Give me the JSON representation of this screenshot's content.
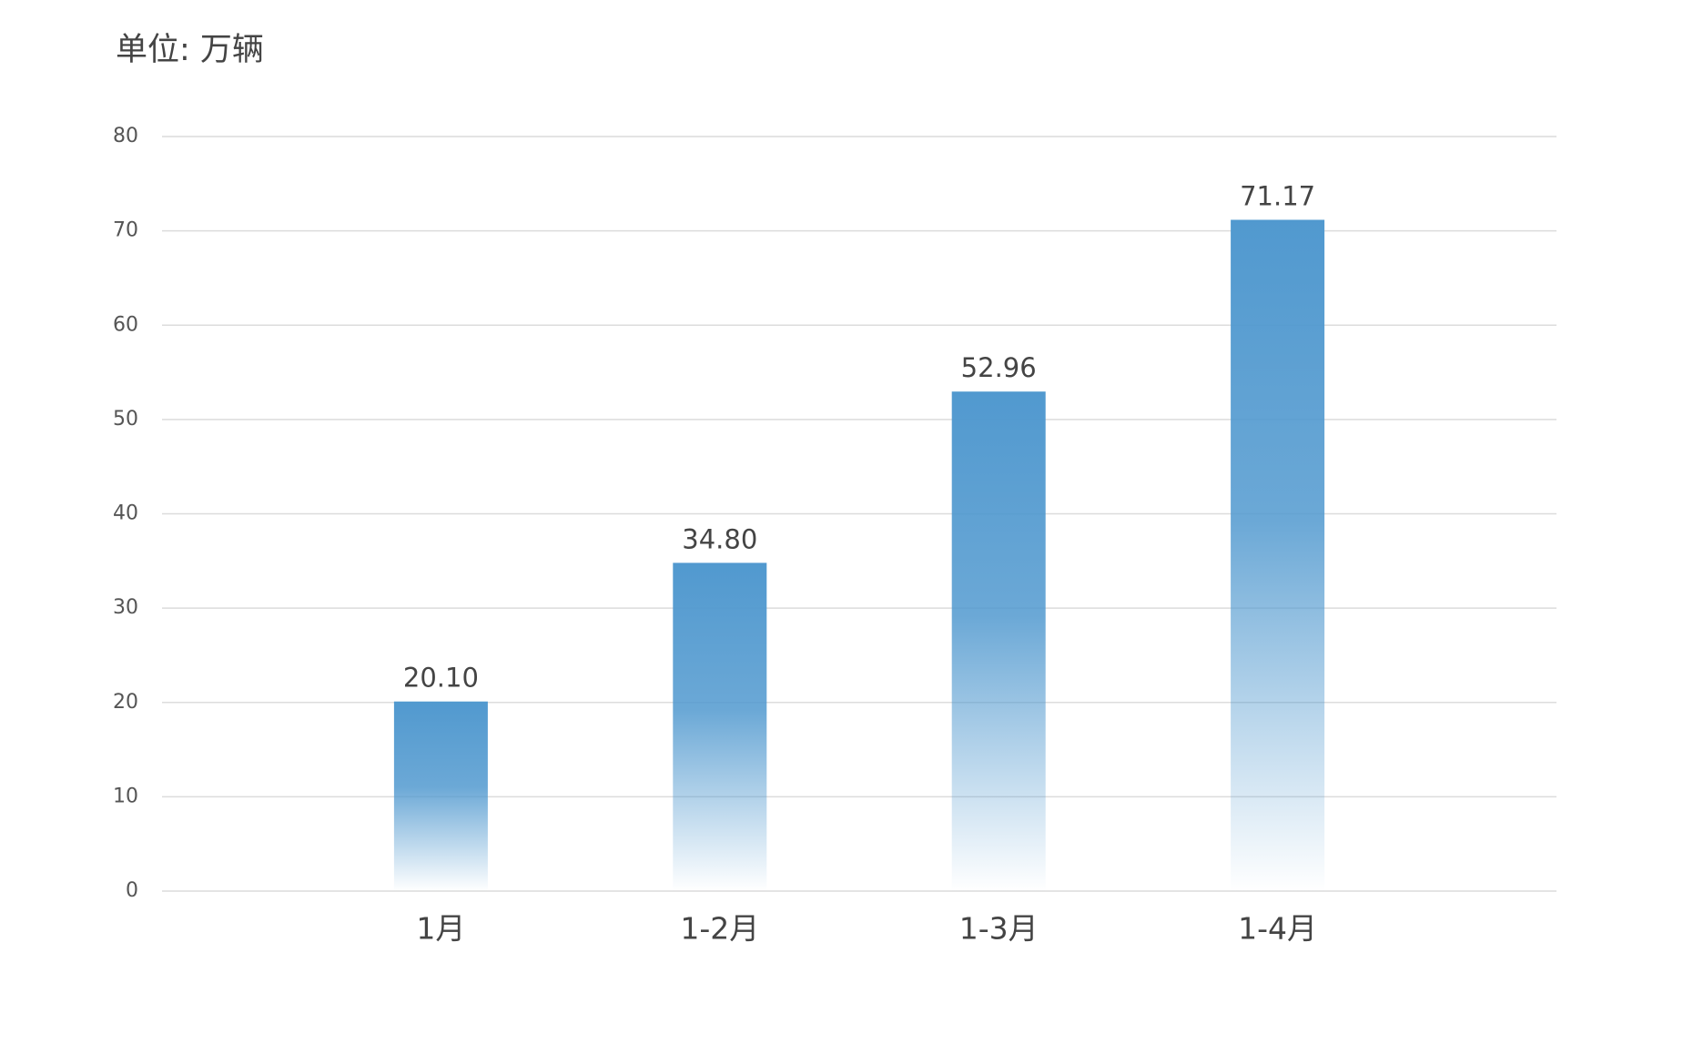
{
  "chart_data": {
    "type": "bar",
    "title": "单位: 万辆",
    "categories": [
      "1月",
      "1-2月",
      "1-3月",
      "1-4月"
    ],
    "values": [
      20.1,
      34.8,
      52.96,
      71.17
    ],
    "value_labels": [
      "20.10",
      "34.80",
      "52.96",
      "71.17"
    ],
    "color": "#5199cf",
    "ylim": [
      0,
      80
    ],
    "yticks": [
      0,
      10,
      20,
      30,
      40,
      50,
      60,
      70,
      80
    ],
    "grid": true
  }
}
